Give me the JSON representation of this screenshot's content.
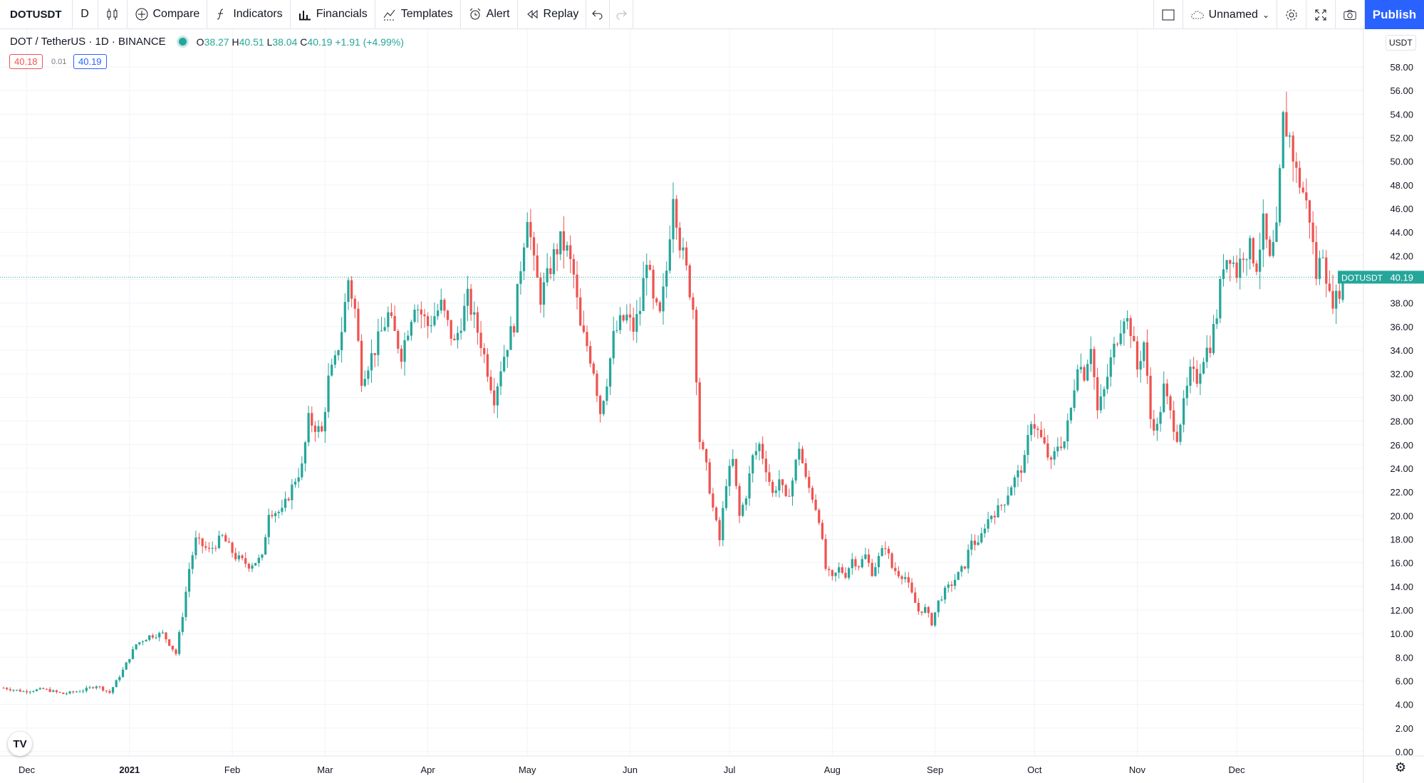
{
  "toolbar": {
    "symbol": "DOTUSDT",
    "interval": "D",
    "compare_label": "Compare",
    "indicators_label": "Indicators",
    "financials_label": "Financials",
    "templates_label": "Templates",
    "alert_label": "Alert",
    "replay_label": "Replay",
    "layout_name": "Unnamed",
    "publish_label": "Publish"
  },
  "legend": {
    "title": "DOT / TetherUS · 1D · BINANCE",
    "open_label": "O",
    "open": "38.27",
    "high_label": "H",
    "high": "40.51",
    "low_label": "L",
    "low": "38.04",
    "close_label": "C",
    "close": "40.19",
    "change": "+1.91 (+4.99%)",
    "bid": "40.18",
    "spread": "0.01",
    "ask": "40.19"
  },
  "price_axis": {
    "currency": "USDT",
    "last_label": "DOTUSDT",
    "last_price": "40.19"
  },
  "logo": "TV",
  "colors": {
    "up": "#26a69a",
    "down": "#ef5350",
    "accent": "#2962ff"
  },
  "chart_data": {
    "type": "candlestick",
    "ylim": [
      0,
      58
    ],
    "y_ticks": [
      "0.00",
      "2.00",
      "4.00",
      "6.00",
      "8.00",
      "10.00",
      "12.00",
      "14.00",
      "16.00",
      "18.00",
      "20.00",
      "22.00",
      "24.00",
      "26.00",
      "28.00",
      "30.00",
      "32.00",
      "34.00",
      "36.00",
      "38.00",
      "40.00",
      "42.00",
      "44.00",
      "46.00",
      "48.00",
      "50.00",
      "52.00",
      "54.00",
      "56.00",
      "58.00"
    ],
    "x_ticks": [
      "Dec",
      "2021",
      "Feb",
      "Mar",
      "Apr",
      "May",
      "Jun",
      "Jul",
      "Aug",
      "Sep",
      "Oct",
      "Nov",
      "Dec"
    ],
    "close_path": [
      [
        0,
        5.4
      ],
      [
        6,
        5.1
      ],
      [
        12,
        5.3
      ],
      [
        18,
        4.9
      ],
      [
        24,
        5.2
      ],
      [
        28,
        5.6
      ],
      [
        32,
        5.0
      ],
      [
        36,
        6.9
      ],
      [
        40,
        9.1
      ],
      [
        44,
        9.8
      ],
      [
        48,
        10.0
      ],
      [
        52,
        8.3
      ],
      [
        54,
        11.6
      ],
      [
        56,
        15.5
      ],
      [
        58,
        17.9
      ],
      [
        62,
        17.0
      ],
      [
        66,
        18.2
      ],
      [
        70,
        16.5
      ],
      [
        74,
        15.8
      ],
      [
        78,
        16.4
      ],
      [
        80,
        20.4
      ],
      [
        84,
        20.3
      ],
      [
        88,
        23.1
      ],
      [
        90,
        24.1
      ],
      [
        92,
        28.1
      ],
      [
        96,
        27.0
      ],
      [
        98,
        31.5
      ],
      [
        100,
        33.0
      ],
      [
        102,
        35.8
      ],
      [
        104,
        40.0
      ],
      [
        106,
        37.4
      ],
      [
        108,
        31.7
      ],
      [
        112,
        34.1
      ],
      [
        116,
        37.0
      ],
      [
        120,
        33.7
      ],
      [
        124,
        38.1
      ],
      [
        128,
        36.1
      ],
      [
        132,
        37.8
      ],
      [
        136,
        34.5
      ],
      [
        140,
        38.4
      ],
      [
        144,
        34.7
      ],
      [
        148,
        30.0
      ],
      [
        150,
        32.6
      ],
      [
        152,
        34.6
      ],
      [
        154,
        36.3
      ],
      [
        156,
        41.2
      ],
      [
        158,
        45.7
      ],
      [
        160,
        41.2
      ],
      [
        162,
        38.5
      ],
      [
        164,
        40.1
      ],
      [
        166,
        42.0
      ],
      [
        168,
        43.2
      ],
      [
        170,
        42.4
      ],
      [
        172,
        40.3
      ],
      [
        174,
        35.8
      ],
      [
        176,
        34.4
      ],
      [
        178,
        32.4
      ],
      [
        180,
        28.8
      ],
      [
        182,
        31.5
      ],
      [
        184,
        35.1
      ],
      [
        186,
        36.3
      ],
      [
        188,
        36.8
      ],
      [
        190,
        35.8
      ],
      [
        192,
        37.5
      ],
      [
        194,
        42.0
      ],
      [
        196,
        37.9
      ],
      [
        198,
        36.8
      ],
      [
        200,
        40.8
      ],
      [
        202,
        47.6
      ],
      [
        204,
        43.2
      ],
      [
        206,
        40.7
      ],
      [
        208,
        37.6
      ],
      [
        210,
        26.4
      ],
      [
        212,
        24.0
      ],
      [
        214,
        20.6
      ],
      [
        216,
        17.9
      ],
      [
        218,
        22.9
      ],
      [
        220,
        24.6
      ],
      [
        222,
        19.9
      ],
      [
        224,
        21.8
      ],
      [
        226,
        24.9
      ],
      [
        228,
        26.0
      ],
      [
        230,
        24.1
      ],
      [
        232,
        21.8
      ],
      [
        234,
        23.1
      ],
      [
        236,
        21.2
      ],
      [
        238,
        23.0
      ],
      [
        240,
        25.9
      ],
      [
        242,
        23.0
      ],
      [
        244,
        21.6
      ],
      [
        246,
        19.8
      ],
      [
        248,
        15.5
      ],
      [
        250,
        14.6
      ],
      [
        252,
        15.5
      ],
      [
        254,
        15.0
      ],
      [
        256,
        16.3
      ],
      [
        258,
        15.8
      ],
      [
        260,
        16.6
      ],
      [
        262,
        15.2
      ],
      [
        264,
        16.4
      ],
      [
        266,
        17.5
      ],
      [
        268,
        15.6
      ],
      [
        270,
        15.1
      ],
      [
        272,
        14.8
      ],
      [
        274,
        13.3
      ],
      [
        276,
        11.9
      ],
      [
        278,
        12.1
      ],
      [
        280,
        10.9
      ],
      [
        282,
        12.7
      ],
      [
        284,
        13.6
      ],
      [
        286,
        14.2
      ],
      [
        288,
        15.0
      ],
      [
        290,
        15.8
      ],
      [
        292,
        18.0
      ],
      [
        294,
        17.4
      ],
      [
        296,
        19.2
      ],
      [
        298,
        20.1
      ],
      [
        300,
        20.5
      ],
      [
        302,
        21.3
      ],
      [
        304,
        22.6
      ],
      [
        306,
        23.5
      ],
      [
        308,
        24.6
      ],
      [
        310,
        28.2
      ],
      [
        312,
        27.1
      ],
      [
        314,
        25.8
      ],
      [
        316,
        24.3
      ],
      [
        318,
        26.0
      ],
      [
        320,
        26.3
      ],
      [
        322,
        29.0
      ],
      [
        324,
        33.1
      ],
      [
        326,
        32.0
      ],
      [
        328,
        34.6
      ],
      [
        330,
        28.8
      ],
      [
        332,
        30.5
      ],
      [
        334,
        33.1
      ],
      [
        336,
        35.2
      ],
      [
        338,
        37.1
      ],
      [
        340,
        35.8
      ],
      [
        342,
        32.4
      ],
      [
        344,
        34.7
      ],
      [
        346,
        28.2
      ],
      [
        348,
        27.4
      ],
      [
        350,
        30.8
      ],
      [
        352,
        28.6
      ],
      [
        354,
        26.8
      ],
      [
        356,
        29.3
      ],
      [
        358,
        32.0
      ],
      [
        360,
        31.6
      ],
      [
        362,
        33.6
      ],
      [
        364,
        34.5
      ],
      [
        366,
        37.1
      ],
      [
        368,
        41.5
      ],
      [
        370,
        42.2
      ],
      [
        372,
        40.6
      ],
      [
        374,
        42.4
      ],
      [
        376,
        42.6
      ],
      [
        378,
        41.3
      ],
      [
        380,
        44.6
      ],
      [
        382,
        41.4
      ],
      [
        384,
        43.9
      ],
      [
        386,
        53.5
      ],
      [
        388,
        52.0
      ],
      [
        390,
        49.0
      ],
      [
        392,
        47.4
      ],
      [
        394,
        45.3
      ],
      [
        396,
        40.3
      ],
      [
        398,
        42.6
      ],
      [
        400,
        38.4
      ],
      [
        402,
        38.3
      ],
      [
        404,
        40.19
      ]
    ]
  }
}
